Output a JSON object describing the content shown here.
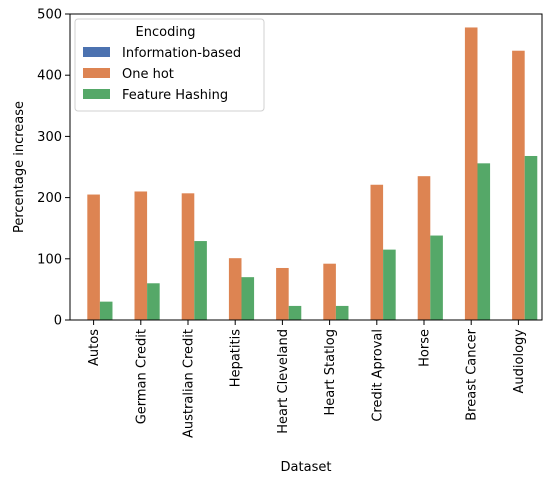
{
  "chart_data": {
    "type": "bar",
    "xlabel": "Dataset",
    "ylabel": "Percentage increase",
    "ylim": [
      0,
      500
    ],
    "yticks": [
      0,
      100,
      200,
      300,
      400,
      500
    ],
    "grid": false,
    "legend": {
      "title": "Encoding",
      "placement": "top-left"
    },
    "categories": [
      "Autos",
      "German Credit",
      "Australian Credit",
      "Hepatitis",
      "Heart Cleveland",
      "Heart Statlog",
      "Credit Aproval",
      "Horse",
      "Breast Cancer",
      "Audiology"
    ],
    "series": [
      {
        "name": "Information-based",
        "color": "#4c72b0",
        "values": [
          0,
          0,
          0,
          0,
          0,
          0,
          0,
          0,
          0,
          0
        ]
      },
      {
        "name": "One hot",
        "color": "#dd8452",
        "values": [
          205,
          210,
          207,
          101,
          85,
          92,
          221,
          235,
          478,
          440
        ]
      },
      {
        "name": "Feature Hashing",
        "color": "#55a868",
        "values": [
          30,
          60,
          129,
          70,
          23,
          23,
          115,
          138,
          256,
          268
        ]
      }
    ]
  }
}
